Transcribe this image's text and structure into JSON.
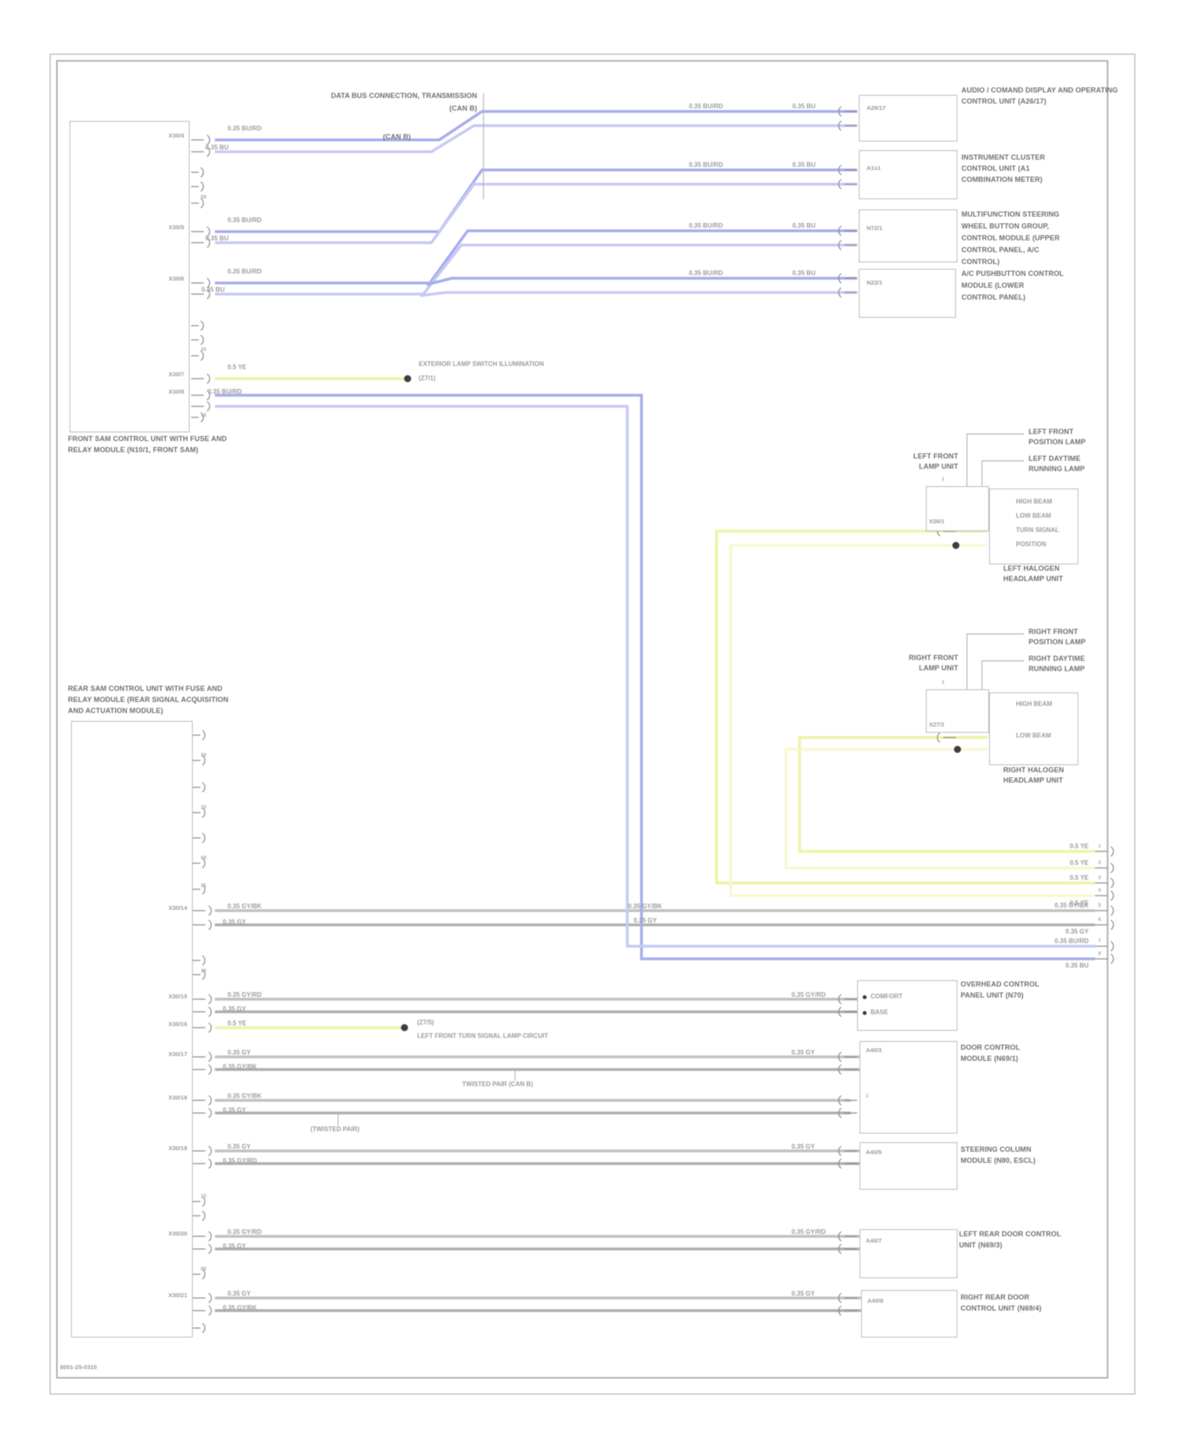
{
  "diagram": {
    "footer": "8001-25-0310",
    "colors": {
      "can_bus": "#a6adec",
      "can_bus_light": "#c6caf4",
      "signal_yellow": "#eff1a5",
      "signal_yellow_light": "#f7f8d2",
      "wire_gray": "#c0c0c0",
      "wire_gray_dark": "#aeaeae"
    },
    "annotation": {
      "line1": "DATA BUS CONNECTION, TRANSMISSION",
      "line2": "(CAN B)",
      "note": "(CAN B)"
    },
    "front_sam": {
      "label1": "FRONT SAM CONTROL UNIT WITH FUSE AND",
      "label2": "RELAY MODULE (N10/1, FRONT SAM)",
      "pins": {
        "p1": "X30/4",
        "p2": "X30/5",
        "p3": "X30/6",
        "p4": "X30/7",
        "p5": "X30/8"
      },
      "stubs": {
        "s1": "58",
        "s2": "30",
        "s3": "15"
      },
      "wires": {
        "w1a": "0.35 BU/RD",
        "w1b": "0.35 BU",
        "w2a": "0.35 BU/RD",
        "w2b": "0.35 BU",
        "w3a": "0.35 BU/RD",
        "w3b": "0.35 BU",
        "wy": "0.5 YE",
        "w5a": "0.35 BU/RD"
      },
      "splice": {
        "label1": "EXTERIOR LAMP SWITCH ILLUMINATION",
        "label2": "(Z7/1)"
      }
    },
    "top_modules": [
      {
        "id": "A26/17",
        "mid": "0.35 BU/RD",
        "near": "0.35 BU",
        "lines": [
          "AUDIO / COMAND DISPLAY AND OPERATING",
          "CONTROL UNIT (A26/17)"
        ]
      },
      {
        "id": "A1x1",
        "mid": "0.35 BU/RD",
        "near": "0.35 BU",
        "lines": [
          "INSTRUMENT CLUSTER",
          "CONTROL UNIT (A1",
          "COMBINATION METER)"
        ]
      },
      {
        "id": "N72/1",
        "mid": "0.35 BU/RD",
        "near": "0.35 BU",
        "lines": [
          "MULTIFUNCTION STEERING",
          "WHEEL BUTTON GROUP,",
          "CONTROL MODULE (UPPER",
          "CONTROL PANEL, A/C",
          "CONTROL)"
        ]
      },
      {
        "id": "N22/1",
        "mid": "0.35 BU/RD",
        "near": "0.35 BU",
        "lines": [
          "A/C PUSHBUTTON CONTROL",
          "MODULE (LOWER",
          "CONTROL PANEL)"
        ]
      }
    ],
    "headlamp_left": {
      "unit1": "LEFT FRONT",
      "unit2": "LAMP UNIT",
      "top1a": "LEFT FRONT",
      "top1b": "POSITION LAMP",
      "top2a": "LEFT DAYTIME",
      "top2b": "RUNNING LAMP",
      "pin_top": "1",
      "connector": "X26/1",
      "bulbs": [
        "HIGH BEAM",
        "LOW BEAM",
        "TURN SIGNAL",
        "POSITION"
      ],
      "bottom1": "LEFT HALOGEN",
      "bottom2": "HEADLAMP UNIT"
    },
    "headlamp_right": {
      "unit1": "RIGHT FRONT",
      "unit2": "LAMP UNIT",
      "top1a": "RIGHT FRONT",
      "top1b": "POSITION LAMP",
      "top2a": "RIGHT DAYTIME",
      "top2b": "RUNNING LAMP",
      "pin_top": "1",
      "connector": "X27/1",
      "bulbs": [
        "HIGH BEAM",
        "LOW BEAM"
      ],
      "bottom1": "RIGHT HALOGEN",
      "bottom2": "HEADLAMP UNIT"
    },
    "rear_sam": {
      "label1": "REAR SAM CONTROL UNIT WITH FUSE AND",
      "label2": "RELAY MODULE (REAR SIGNAL ACQUISITION",
      "label3": "AND ACTUATION MODULE)",
      "pins": {
        "r1": "X30/14",
        "r2": "X30/15",
        "ry": "X30/16",
        "r3": "X30/17",
        "r4": "X30/18",
        "r5": "X30/19",
        "r6": "X30/20",
        "r7": "X30/21"
      },
      "stubs": {
        "s1": "30",
        "s2": "15",
        "s3": "58",
        "s4": "31",
        "s5": "30",
        "s6": "15",
        "s7": "58"
      },
      "wires": {
        "r1a": "0.35 GY/BK",
        "r1b": "0.35 GY",
        "r1c": "0.35 GY/BK",
        "r1d": "0.35 GY",
        "r2a": "0.35 GY/RD",
        "r2b": "0.35 GY",
        "r2c": "0.35 GY/RD",
        "ry": "0.5 YE",
        "r3a": "0.35 GY",
        "r3b": "0.35 GY/BK",
        "r3c": "0.35 GY",
        "r4a": "0.35 GY/BK",
        "r4b": "0.35 GY",
        "r5a": "0.35 GY",
        "r5b": "0.35 GY/RD",
        "r5c": "0.35 GY",
        "r6a": "0.35 GY/RD",
        "r6b": "0.35 GY",
        "r6c": "0.35 GY/RD",
        "r7a": "0.35 GY",
        "r7b": "0.35 GY/BK",
        "r7c": "0.35 GY"
      },
      "splice": {
        "label1": "(Z7/5)",
        "label2": "LEFT FRONT TURN SIGNAL LAMP CIRCUIT"
      },
      "notes": {
        "twisted": "TWISTED PAIR (CAN B)",
        "shield": "(TWISTED PAIR)"
      }
    },
    "bottom_modules": [
      {
        "items": [
          "COMFORT",
          "BASE"
        ],
        "lines": [
          "OVERHEAD CONTROL",
          "PANEL UNIT (N70)"
        ]
      },
      {
        "id": "A40/3",
        "pin": "1",
        "lines": [
          "DOOR CONTROL",
          "MODULE (N69/1)"
        ]
      },
      {
        "id": "A40/5",
        "lines": [
          "STEERING COLUMN",
          "MODULE (N80, ESCL)"
        ]
      },
      {
        "id": "A40/7",
        "lines": [
          "LEFT REAR DOOR CONTROL",
          "UNIT (N69/3)"
        ]
      },
      {
        "id": "A40/8",
        "lines": [
          "RIGHT REAR DOOR",
          "CONTROL UNIT (N69/4)"
        ]
      }
    ],
    "right_edge": {
      "labels": [
        "0.5 YE",
        "0.5 YE",
        "0.5 YE",
        "0.5 YE",
        "0.35 GY/BK",
        "0.35 GY",
        "0.35 BU/RD",
        "0.35 BU"
      ],
      "pins": [
        "1",
        "2",
        "3",
        "4",
        "5",
        "6",
        "7",
        "8"
      ]
    }
  }
}
